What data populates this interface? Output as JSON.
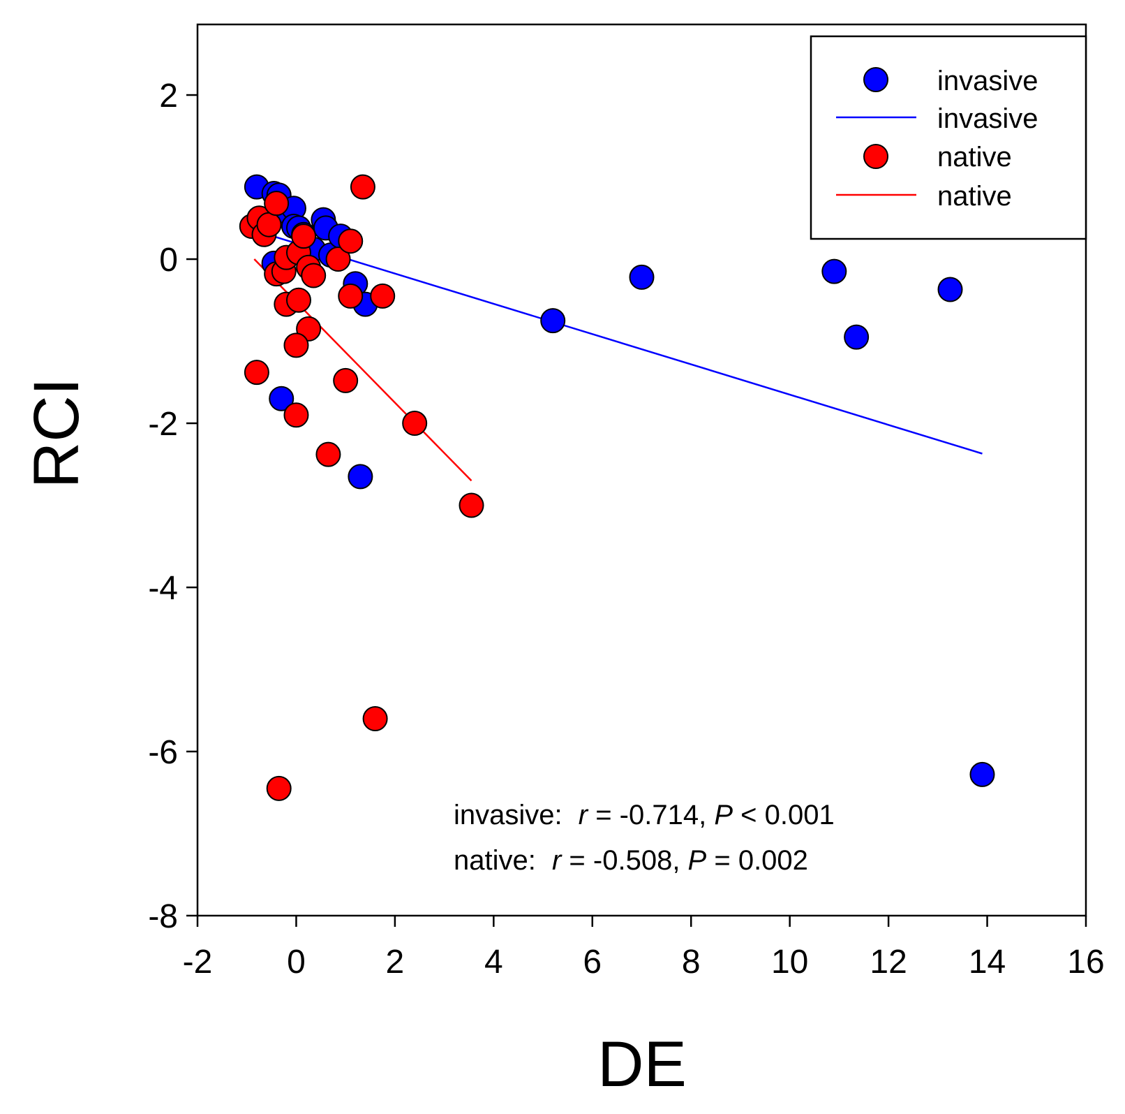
{
  "chart_data": {
    "type": "scatter",
    "xlabel": "DE",
    "ylabel": "RCI",
    "xlim": [
      -2,
      16
    ],
    "ylim": [
      -8,
      3
    ],
    "xticks": [
      -2,
      0,
      2,
      4,
      6,
      8,
      10,
      12,
      14,
      16
    ],
    "yticks": [
      -8,
      -6,
      -4,
      -2,
      0,
      2
    ],
    "grid": false,
    "legend": {
      "placement": "top-right",
      "entries": [
        {
          "label": "invasive",
          "kind": "marker",
          "color": "#0000ff"
        },
        {
          "label": "invasive",
          "kind": "line",
          "color": "#0000ff"
        },
        {
          "label": "native",
          "kind": "marker",
          "color": "#ff0000"
        },
        {
          "label": "native",
          "kind": "line",
          "color": "#ff0000"
        }
      ]
    },
    "series": [
      {
        "name": "invasive",
        "kind": "points",
        "color": "#0000ff",
        "points": [
          [
            -0.8,
            0.88
          ],
          [
            -0.45,
            0.8
          ],
          [
            -0.35,
            0.78
          ],
          [
            -0.2,
            0.58
          ],
          [
            -0.05,
            0.62
          ],
          [
            -0.05,
            0.4
          ],
          [
            0.05,
            0.38
          ],
          [
            0.15,
            0.3
          ],
          [
            0.35,
            0.12
          ],
          [
            0.55,
            0.48
          ],
          [
            0.6,
            0.38
          ],
          [
            0.7,
            0.05
          ],
          [
            0.9,
            0.28
          ],
          [
            1.2,
            -0.3
          ],
          [
            1.4,
            -0.55
          ],
          [
            -0.45,
            -0.05
          ],
          [
            -0.3,
            -1.7
          ],
          [
            1.3,
            -2.65
          ],
          [
            5.2,
            -0.75
          ],
          [
            7.0,
            -0.22
          ],
          [
            10.9,
            -0.15
          ],
          [
            11.35,
            -0.95
          ],
          [
            13.25,
            -0.37
          ],
          [
            13.9,
            -6.28
          ]
        ]
      },
      {
        "name": "native",
        "kind": "points",
        "color": "#ff0000",
        "points": [
          [
            -0.9,
            0.4
          ],
          [
            -0.75,
            0.5
          ],
          [
            -0.65,
            0.3
          ],
          [
            -0.55,
            0.42
          ],
          [
            -0.4,
            0.68
          ],
          [
            -0.4,
            -0.18
          ],
          [
            -0.25,
            -0.15
          ],
          [
            -0.2,
            0.02
          ],
          [
            -0.2,
            -0.55
          ],
          [
            0.05,
            0.08
          ],
          [
            0.05,
            -0.5
          ],
          [
            0.15,
            0.28
          ],
          [
            0.25,
            -0.1
          ],
          [
            0.35,
            -0.2
          ],
          [
            0.85,
            0.0
          ],
          [
            1.1,
            -0.45
          ],
          [
            1.1,
            0.22
          ],
          [
            1.35,
            0.88
          ],
          [
            1.75,
            -0.45
          ],
          [
            0.25,
            -0.85
          ],
          [
            0.0,
            -1.05
          ],
          [
            -0.8,
            -1.38
          ],
          [
            1.0,
            -1.48
          ],
          [
            0.0,
            -1.9
          ],
          [
            0.65,
            -2.38
          ],
          [
            2.4,
            -2.0
          ],
          [
            3.55,
            -3.0
          ],
          [
            1.6,
            -5.6
          ],
          [
            -0.35,
            -6.45
          ]
        ]
      },
      {
        "name": "invasive",
        "kind": "fit-line",
        "color": "#0000ff",
        "points": [
          [
            -0.85,
            0.35
          ],
          [
            13.9,
            -2.37
          ]
        ]
      },
      {
        "name": "native",
        "kind": "fit-line",
        "color": "#ff0000",
        "points": [
          [
            -0.85,
            0.0
          ],
          [
            3.55,
            -2.7
          ]
        ]
      }
    ],
    "annotations": {
      "invasive": {
        "group": "invasive:",
        "r_symbol": "r",
        "r_value": " = -0.714, ",
        "p_symbol": "P",
        "p_value": " < 0.001"
      },
      "native": {
        "group": "native:",
        "r_symbol": "r",
        "r_value": " = -0.508, ",
        "p_symbol": "P",
        "p_value": " = 0.002"
      }
    }
  }
}
